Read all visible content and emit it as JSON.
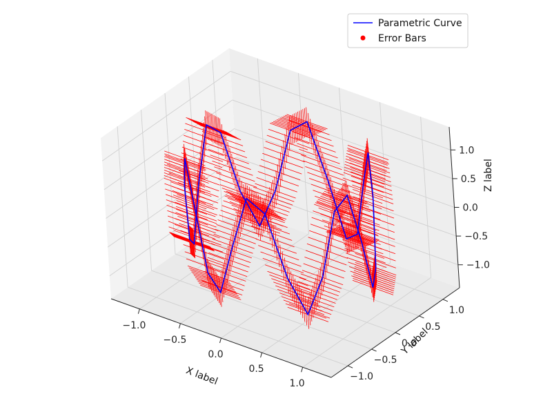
{
  "chart_data": {
    "type": "line",
    "projection": "3d",
    "xlabel": "X label",
    "ylabel": "Y label",
    "zlabel": "Z label",
    "x_ticks": [
      "−1.0",
      "−0.5",
      "0.0",
      "0.5",
      "1.0"
    ],
    "y_ticks": [
      "−1.0",
      "−0.5",
      "0.0",
      "0.5",
      "1.0"
    ],
    "z_ticks": [
      "−1.0",
      "−0.5",
      "0.0",
      "0.5",
      "1.0"
    ],
    "xlim": [
      -1.35,
      1.35
    ],
    "ylim": [
      -1.35,
      1.35
    ],
    "zlim": [
      -1.4,
      1.4
    ],
    "grid": true,
    "legend_position": "top-right",
    "series": [
      {
        "name": "Parametric Curve",
        "kind": "line",
        "color": "#0000ff",
        "x": [
          -1.0,
          -0.98,
          -0.92,
          -0.83,
          -0.71,
          -0.56,
          -0.38,
          -0.2,
          0.0,
          0.2,
          0.38,
          0.56,
          0.71,
          0.83,
          0.92,
          0.98,
          1.0,
          0.98,
          0.92,
          0.83,
          0.71,
          0.56,
          0.38,
          0.2,
          0.0,
          -0.2,
          -0.38,
          -0.56,
          -0.71,
          -0.83,
          -0.92,
          -0.98,
          -1.0
        ],
        "y": [
          0.0,
          0.2,
          0.38,
          0.56,
          0.71,
          0.83,
          0.92,
          0.98,
          1.0,
          0.98,
          0.92,
          0.83,
          0.71,
          0.56,
          0.38,
          0.2,
          0.0,
          -0.2,
          -0.38,
          -0.56,
          -0.71,
          -0.83,
          -0.92,
          -0.98,
          -1.0,
          -0.98,
          -0.92,
          -0.83,
          -0.71,
          -0.56,
          -0.38,
          -0.2,
          0.0
        ],
        "z": [
          0.0,
          0.92,
          0.71,
          -0.38,
          -1.0,
          -0.38,
          0.71,
          0.92,
          0.0,
          -0.92,
          -0.71,
          0.38,
          1.0,
          0.38,
          -0.71,
          -0.92,
          0.0,
          0.92,
          0.71,
          -0.38,
          -1.0,
          -0.38,
          0.71,
          0.92,
          0.0,
          -0.92,
          -0.71,
          0.38,
          1.0,
          0.38,
          -0.71,
          -0.92,
          0.0
        ]
      },
      {
        "name": "Error Bars",
        "kind": "errorbar",
        "color": "#ff0000",
        "error_magnitude": 0.25
      }
    ]
  },
  "legend": {
    "items": [
      {
        "label": "Parametric Curve",
        "color": "#0000ff",
        "marker": "line"
      },
      {
        "label": "Error Bars",
        "color": "#ff0000",
        "marker": "dot"
      }
    ]
  }
}
